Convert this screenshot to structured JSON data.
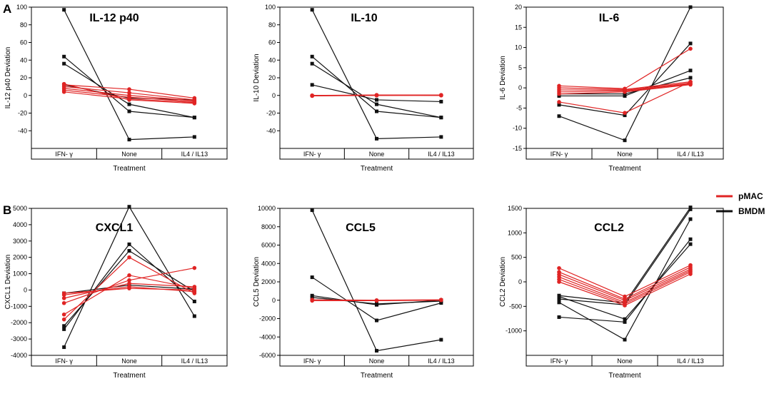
{
  "panel_letters": [
    "A",
    "B"
  ],
  "legend": {
    "items": [
      {
        "label": "pMAC",
        "color": "#e02424"
      },
      {
        "label": "BMDM",
        "color": "#111111"
      }
    ]
  },
  "chart_data": [
    {
      "type": "line",
      "title": "IL-12 p40",
      "xlabel": "Treatment",
      "ylabel": "IL-12 p40 Deviation",
      "categories": [
        "IFN- γ",
        "None",
        "IL4 / IL13"
      ],
      "ylim": [
        -60,
        100
      ],
      "yticks": [
        -40,
        -20,
        0,
        20,
        40,
        60,
        80,
        100
      ],
      "series": [
        {
          "name": "pMAC",
          "values": [
            12,
            7,
            -3
          ]
        },
        {
          "name": "pMAC",
          "values": [
            10,
            3,
            -5
          ]
        },
        {
          "name": "pMAC",
          "values": [
            8,
            0,
            -6
          ]
        },
        {
          "name": "pMAC",
          "values": [
            6,
            -2,
            -7
          ]
        },
        {
          "name": "pMAC",
          "values": [
            4,
            -4,
            -8
          ]
        },
        {
          "name": "pMAC",
          "values": [
            13,
            -5,
            -9
          ]
        },
        {
          "name": "BMDM",
          "values": [
            97,
            -50,
            -47
          ]
        },
        {
          "name": "BMDM",
          "values": [
            44,
            -18,
            -25
          ]
        },
        {
          "name": "BMDM",
          "values": [
            36,
            -10,
            -25
          ]
        },
        {
          "name": "BMDM",
          "values": [
            12,
            -3,
            -5
          ]
        }
      ]
    },
    {
      "type": "line",
      "title": "IL-10",
      "xlabel": "Treatment",
      "ylabel": "IL-10 Deviation",
      "categories": [
        "IFN- γ",
        "None",
        "IL4 / IL13"
      ],
      "ylim": [
        -60,
        100
      ],
      "yticks": [
        -40,
        -20,
        0,
        20,
        40,
        60,
        80,
        100
      ],
      "series": [
        {
          "name": "pMAC",
          "values": [
            -0.5,
            0.5,
            0.5
          ]
        },
        {
          "name": "pMAC",
          "values": [
            -0.5,
            0,
            0
          ]
        },
        {
          "name": "pMAC",
          "values": [
            0,
            0,
            0.5
          ]
        },
        {
          "name": "pMAC",
          "values": [
            0,
            0.5,
            0
          ]
        },
        {
          "name": "BMDM",
          "values": [
            97,
            -49,
            -47
          ]
        },
        {
          "name": "BMDM",
          "values": [
            44,
            -18,
            -25
          ]
        },
        {
          "name": "BMDM",
          "values": [
            36,
            -10,
            -25
          ]
        },
        {
          "name": "BMDM",
          "values": [
            12,
            -5,
            -7
          ]
        }
      ]
    },
    {
      "type": "line",
      "title": "IL-6",
      "xlabel": "Treatment",
      "ylabel": "IL-6 Deviation",
      "categories": [
        "IFN- γ",
        "None",
        "IL4 / IL13"
      ],
      "ylim": [
        -15,
        20
      ],
      "yticks": [
        -15,
        -10,
        -5,
        0,
        5,
        10,
        15,
        20
      ],
      "series": [
        {
          "name": "pMAC",
          "values": [
            0.5,
            -0.2,
            9.7
          ]
        },
        {
          "name": "pMAC",
          "values": [
            0,
            -0.4,
            1.5
          ]
        },
        {
          "name": "pMAC",
          "values": [
            -0.5,
            -0.6,
            1.2
          ]
        },
        {
          "name": "pMAC",
          "values": [
            -1,
            -0.8,
            1
          ]
        },
        {
          "name": "pMAC",
          "values": [
            -1.5,
            -1,
            0.8
          ]
        },
        {
          "name": "pMAC",
          "values": [
            -3.5,
            -6.2,
            1.5
          ]
        },
        {
          "name": "BMDM",
          "values": [
            -7,
            -13,
            20
          ]
        },
        {
          "name": "BMDM",
          "values": [
            -4.2,
            -6.8,
            11
          ]
        },
        {
          "name": "BMDM",
          "values": [
            -2,
            -2,
            4.3
          ]
        },
        {
          "name": "BMDM",
          "values": [
            -1.5,
            -1.5,
            2.5
          ]
        }
      ]
    },
    {
      "type": "line",
      "title": "CXCL1",
      "xlabel": "Treatment",
      "ylabel": "CXCL1 Deviation",
      "categories": [
        "IFN- γ",
        "None",
        "IL4 / IL13"
      ],
      "ylim": [
        -4000,
        5000
      ],
      "yticks": [
        -4000,
        -3000,
        -2000,
        -1000,
        0,
        1000,
        2000,
        3000,
        4000,
        5000
      ],
      "series": [
        {
          "name": "pMAC",
          "values": [
            -1800,
            2000,
            -200
          ]
        },
        {
          "name": "pMAC",
          "values": [
            -1500,
            900,
            100
          ]
        },
        {
          "name": "pMAC",
          "values": [
            -800,
            600,
            1350
          ]
        },
        {
          "name": "pMAC",
          "values": [
            -500,
            400,
            200
          ]
        },
        {
          "name": "pMAC",
          "values": [
            -300,
            200,
            -100
          ]
        },
        {
          "name": "pMAC",
          "values": [
            -200,
            100,
            0
          ]
        },
        {
          "name": "BMDM",
          "values": [
            -3500,
            5100,
            -1600
          ]
        },
        {
          "name": "BMDM",
          "values": [
            -2400,
            2800,
            -700
          ]
        },
        {
          "name": "BMDM",
          "values": [
            -2200,
            2400,
            -100
          ]
        },
        {
          "name": "BMDM",
          "values": [
            -200,
            300,
            50
          ]
        }
      ]
    },
    {
      "type": "line",
      "title": "CCL5",
      "xlabel": "Treatment",
      "ylabel": "CCL5 Deviation",
      "categories": [
        "IFN- γ",
        "None",
        "IL4 / IL13"
      ],
      "ylim": [
        -6000,
        10000
      ],
      "yticks": [
        -6000,
        -4000,
        -2000,
        0,
        2000,
        4000,
        6000,
        8000,
        10000
      ],
      "series": [
        {
          "name": "pMAC",
          "values": [
            50,
            0,
            50
          ]
        },
        {
          "name": "pMAC",
          "values": [
            -50,
            -50,
            0
          ]
        },
        {
          "name": "BMDM",
          "values": [
            9800,
            -5500,
            -4300
          ]
        },
        {
          "name": "BMDM",
          "values": [
            2500,
            -2200,
            -300
          ]
        },
        {
          "name": "BMDM",
          "values": [
            500,
            -500,
            0
          ]
        },
        {
          "name": "BMDM",
          "values": [
            300,
            -400,
            -100
          ]
        }
      ]
    },
    {
      "type": "line",
      "title": "CCL2",
      "xlabel": "Treatment",
      "ylabel": "CCL2 Deviation",
      "categories": [
        "IFN- γ",
        "None",
        "IL4 / IL13"
      ],
      "ylim": [
        -1500,
        1500
      ],
      "yticks": [
        -1000,
        -500,
        0,
        500,
        1000,
        1500
      ],
      "series": [
        {
          "name": "pMAC",
          "values": [
            280,
            -300,
            340
          ]
        },
        {
          "name": "pMAC",
          "values": [
            200,
            -350,
            300
          ]
        },
        {
          "name": "pMAC",
          "values": [
            150,
            -380,
            260
          ]
        },
        {
          "name": "pMAC",
          "values": [
            100,
            -420,
            230
          ]
        },
        {
          "name": "pMAC",
          "values": [
            50,
            -450,
            200
          ]
        },
        {
          "name": "pMAC",
          "values": [
            0,
            -480,
            160
          ]
        },
        {
          "name": "BMDM",
          "values": [
            -280,
            -430,
            1520
          ]
        },
        {
          "name": "BMDM",
          "values": [
            -350,
            -470,
            1480
          ]
        },
        {
          "name": "BMDM",
          "values": [
            -420,
            -1180,
            1280
          ]
        },
        {
          "name": "BMDM",
          "values": [
            -720,
            -820,
            870
          ]
        },
        {
          "name": "BMDM",
          "values": [
            -300,
            -760,
            770
          ]
        }
      ]
    }
  ]
}
